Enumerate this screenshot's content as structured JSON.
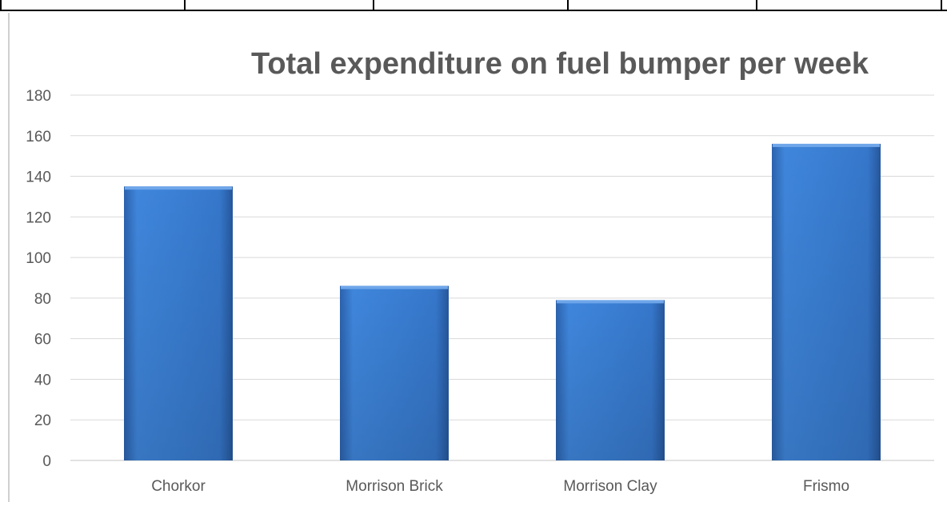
{
  "chart_data": {
    "type": "bar",
    "title": "Total expenditure on fuel bumper per week",
    "xlabel": "",
    "ylabel": "",
    "categories": [
      "Chorkor",
      "Morrison Brick",
      "Morrison Clay",
      "Frismo"
    ],
    "values": [
      135,
      86,
      79,
      156
    ],
    "ylim": [
      0,
      180
    ],
    "yticks": [
      "0",
      "20",
      "40",
      "60",
      "80",
      "100",
      "120",
      "140",
      "160",
      "180"
    ],
    "grid": true,
    "legend": "none",
    "bar_color": "#3e7fd6",
    "bar_color_dark": "#2a5fa8",
    "title_color": "#595959",
    "tick_color": "#595959",
    "grid_color": "#d9d9d9"
  }
}
